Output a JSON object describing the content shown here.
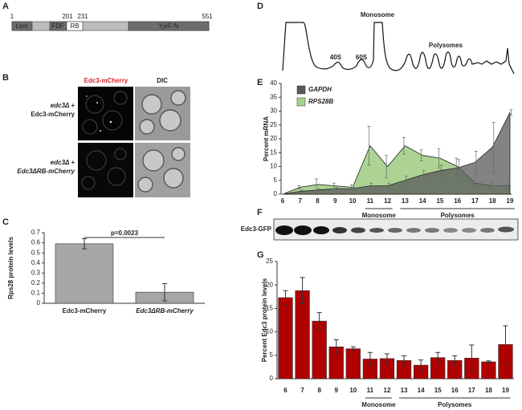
{
  "panel_labels": [
    "A",
    "B",
    "C",
    "D",
    "E",
    "F",
    "G"
  ],
  "domain_map": {
    "positions": [
      "1",
      "201",
      "231",
      "551"
    ],
    "domains": [
      "Lsm",
      "FDF",
      "RB",
      "YjeF-N"
    ]
  },
  "microscopy": {
    "columns": [
      "Edc3-mCherry",
      "DIC"
    ],
    "rows": [
      [
        "edc3Δ +",
        "Edc3-mCherry"
      ],
      [
        "edc3Δ +",
        "Edc3ΔRB-mCherry"
      ]
    ]
  },
  "profile": {
    "labels": [
      "Monosome",
      "40S",
      "60S",
      "Polysomes"
    ]
  },
  "blot": {
    "label": "Edc3-GFP"
  },
  "chart_data": [
    {
      "type": "bar",
      "ylabel": "Rps28 protein levels",
      "categories": [
        "Edc3-mCherry",
        "Edc3ΔRB-mCherry"
      ],
      "values": [
        0.59,
        0.11
      ],
      "errors": [
        0.05,
        0.085
      ],
      "color": "#a6a6a6",
      "ylim": [
        0,
        0.7
      ],
      "yticks": [
        0,
        0.1,
        0.2,
        0.3,
        0.4,
        0.5,
        0.6,
        0.7
      ],
      "annotation": "p=0.0023"
    },
    {
      "type": "area",
      "ylabel": "Percent mRNA",
      "categories": [
        6,
        7,
        8,
        9,
        10,
        11,
        12,
        13,
        14,
        15,
        16,
        17,
        18,
        19
      ],
      "series": [
        {
          "name": "RPS28B",
          "color": "#a9d18e",
          "values": [
            0,
            2.5,
            3.5,
            3,
            2.5,
            17.5,
            10,
            17.5,
            14,
            13,
            10,
            4,
            3,
            3
          ],
          "errors": [
            0,
            0.5,
            2,
            1,
            1,
            7,
            4,
            3,
            2,
            3.5,
            3,
            1,
            1,
            1
          ]
        },
        {
          "name": "GAPDH",
          "color": "#595959",
          "values": [
            0,
            1,
            1.5,
            2,
            2,
            3,
            3,
            5,
            7,
            8.5,
            9.5,
            11.5,
            17,
            29.5
          ],
          "errors": [
            0,
            0.5,
            0.5,
            0.5,
            0.5,
            1,
            1,
            1.5,
            1.5,
            2,
            3,
            4,
            9,
            1
          ]
        }
      ],
      "ylim": [
        0,
        40
      ],
      "yticks": [
        0,
        5,
        10,
        15,
        20,
        25,
        30,
        35,
        40
      ],
      "category_groups": [
        {
          "label": "Monosome",
          "categories": [
            11,
            12
          ]
        },
        {
          "label": "Polysomes",
          "categories": [
            13,
            19
          ]
        }
      ]
    },
    {
      "type": "bar",
      "ylabel": "Percent Edc3 protein levels",
      "categories": [
        6,
        7,
        8,
        9,
        10,
        11,
        12,
        13,
        14,
        15,
        16,
        17,
        18,
        19
      ],
      "values": [
        17.3,
        18.8,
        12.3,
        6.8,
        6.4,
        4.2,
        4.3,
        3.9,
        2.9,
        4.5,
        3.9,
        4.4,
        3.6,
        7.3
      ],
      "errors": [
        1.5,
        2.8,
        1.8,
        1.5,
        0.4,
        1.4,
        1.0,
        1.0,
        1.1,
        1.1,
        1.0,
        2.8,
        0.2,
        4.0
      ],
      "color": "#b00000",
      "ylim": [
        0,
        25
      ],
      "yticks": [
        0,
        5,
        10,
        15,
        20,
        25
      ],
      "category_groups": [
        {
          "label": "Monosome",
          "categories": [
            11,
            12
          ]
        },
        {
          "label": "Polysomes",
          "categories": [
            13,
            19
          ]
        }
      ]
    }
  ]
}
